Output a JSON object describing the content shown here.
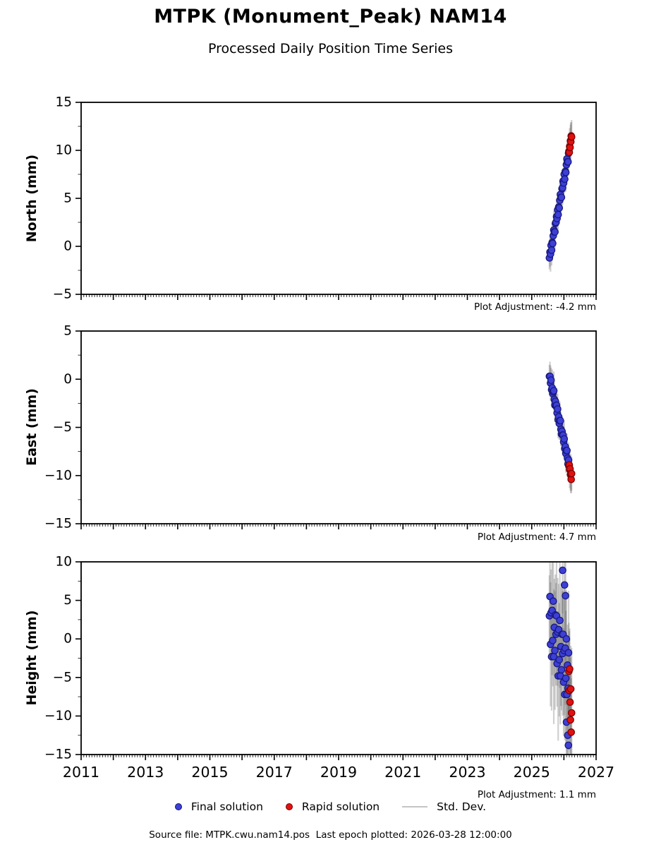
{
  "title": "MTPK (Monument_Peak) NAM14",
  "subtitle": "Processed Daily Position Time Series",
  "footer": "Source file: MTPK.cwu.nam14.pos  Last epoch plotted: 2026-03-28 12:00:00",
  "colors": {
    "final_fill": "#3d40d5",
    "final_edge": "#16167a",
    "rapid_fill": "#e01111",
    "rapid_edge": "#7a0000",
    "std_dev": "#555555",
    "axis": "#000000",
    "legend_line": "#c4c4c4"
  },
  "legend": {
    "final_label": "Final solution",
    "rapid_label": "Rapid solution",
    "std_label": "Std. Dev."
  },
  "xaxis": {
    "lim": [
      2011,
      2027
    ],
    "minor_per_year": 12,
    "ticks": [
      {
        "v": 2011,
        "label": "2011"
      },
      {
        "v": 2013,
        "label": "2013"
      },
      {
        "v": 2015,
        "label": "2015"
      },
      {
        "v": 2017,
        "label": "2017"
      },
      {
        "v": 2019,
        "label": "2019"
      },
      {
        "v": 2021,
        "label": "2021"
      },
      {
        "v": 2023,
        "label": "2023"
      },
      {
        "v": 2025,
        "label": "2025"
      },
      {
        "v": 2027,
        "label": "2027"
      }
    ]
  },
  "chart_data": [
    {
      "type": "scatter",
      "component": "North",
      "ylabel": "North (mm)",
      "ylim": [
        -5,
        15
      ],
      "ytick_values": [
        -5,
        0,
        5,
        10,
        15
      ],
      "ytick_labels": [
        "−5",
        "0",
        "5",
        "10",
        "15"
      ],
      "ytick_minor_step": 2.5,
      "show_xtick_labels": false,
      "plot_adjustment": "Plot Adjustment: -4.2 mm",
      "std_dev_mm": 1.6,
      "series": {
        "final": [
          [
            2025.55,
            -1.2
          ],
          [
            2025.567,
            -0.6
          ],
          [
            2025.584,
            -0.8
          ],
          [
            2025.601,
            0.1
          ],
          [
            2025.618,
            -0.4
          ],
          [
            2025.635,
            0.4
          ],
          [
            2025.652,
            0.3
          ],
          [
            2025.669,
            1.1
          ],
          [
            2025.686,
            1.7
          ],
          [
            2025.703,
            1.5
          ],
          [
            2025.72,
            1.5
          ],
          [
            2025.737,
            2.4
          ],
          [
            2025.754,
            2.5
          ],
          [
            2025.771,
            3.1
          ],
          [
            2025.788,
            2.9
          ],
          [
            2025.805,
            3.8
          ],
          [
            2025.822,
            3.3
          ],
          [
            2025.839,
            4.1
          ],
          [
            2025.856,
            4.0
          ],
          [
            2025.873,
            4.8
          ],
          [
            2025.89,
            5.4
          ],
          [
            2025.907,
            5.1
          ],
          [
            2025.924,
            5.1
          ],
          [
            2025.941,
            6.0
          ],
          [
            2025.958,
            6.1
          ],
          [
            2025.975,
            6.8
          ],
          [
            2025.992,
            6.6
          ],
          [
            2026.009,
            7.5
          ],
          [
            2026.026,
            7.0
          ],
          [
            2026.043,
            7.8
          ],
          [
            2026.06,
            7.7
          ],
          [
            2026.077,
            8.5
          ],
          [
            2026.094,
            9.1
          ],
          [
            2026.111,
            8.8
          ],
          [
            2026.128,
            8.8
          ],
          [
            2026.145,
            9.7
          ]
        ],
        "rapid": [
          [
            2026.155,
            9.9
          ],
          [
            2026.167,
            9.8
          ],
          [
            2026.179,
            10.4
          ],
          [
            2026.191,
            10.3
          ],
          [
            2026.203,
            11.0
          ],
          [
            2026.215,
            10.9
          ],
          [
            2026.227,
            11.5
          ],
          [
            2026.239,
            11.4
          ]
        ]
      }
    },
    {
      "type": "scatter",
      "component": "East",
      "ylabel": "East (mm)",
      "ylim": [
        -15,
        5
      ],
      "ytick_values": [
        -15,
        -10,
        -5,
        0,
        5
      ],
      "ytick_labels": [
        "−15",
        "−10",
        "−5",
        "0",
        "5"
      ],
      "ytick_minor_step": 2.5,
      "show_xtick_labels": false,
      "plot_adjustment": "Plot Adjustment: 4.7 mm",
      "std_dev_mm": 1.6,
      "series": {
        "final": [
          [
            2025.55,
            0.3
          ],
          [
            2025.567,
            0.3
          ],
          [
            2025.584,
            -0.4
          ],
          [
            2025.601,
            -0.1
          ],
          [
            2025.618,
            -1.1
          ],
          [
            2025.635,
            -0.9
          ],
          [
            2025.652,
            -1.5
          ],
          [
            2025.669,
            -1.3
          ],
          [
            2025.686,
            -1.2
          ],
          [
            2025.703,
            -2.1
          ],
          [
            2025.72,
            -2.7
          ],
          [
            2025.737,
            -2.3
          ],
          [
            2025.754,
            -2.8
          ],
          [
            2025.771,
            -2.7
          ],
          [
            2025.788,
            -3.5
          ],
          [
            2025.805,
            -3.1
          ],
          [
            2025.822,
            -4.2
          ],
          [
            2025.839,
            -3.9
          ],
          [
            2025.856,
            -4.6
          ],
          [
            2025.873,
            -4.3
          ],
          [
            2025.89,
            -4.3
          ],
          [
            2025.907,
            -5.2
          ],
          [
            2025.924,
            -5.7
          ],
          [
            2025.941,
            -5.4
          ],
          [
            2025.958,
            -5.8
          ],
          [
            2025.975,
            -5.8
          ],
          [
            2025.992,
            -6.5
          ],
          [
            2026.009,
            -6.2
          ],
          [
            2026.026,
            -7.2
          ],
          [
            2026.043,
            -7.0
          ],
          [
            2026.06,
            -7.7
          ],
          [
            2026.077,
            -7.4
          ],
          [
            2026.094,
            -7.4
          ],
          [
            2026.111,
            -8.2
          ],
          [
            2026.128,
            -8.8
          ],
          [
            2026.145,
            -8.4
          ]
        ],
        "rapid": [
          [
            2026.155,
            -9.0
          ],
          [
            2026.167,
            -8.9
          ],
          [
            2026.179,
            -9.4
          ],
          [
            2026.191,
            -9.3
          ],
          [
            2026.203,
            -9.9
          ],
          [
            2026.215,
            -9.8
          ],
          [
            2026.227,
            -10.4
          ],
          [
            2026.239,
            -9.8
          ]
        ]
      }
    },
    {
      "type": "scatter",
      "component": "Height",
      "ylabel": "Height (mm)",
      "ylim": [
        -15,
        10
      ],
      "ytick_values": [
        -15,
        -10,
        -5,
        0,
        5,
        10
      ],
      "ytick_labels": [
        "−15",
        "−10",
        "−5",
        "0",
        "5",
        "10"
      ],
      "ytick_minor_step": 2.5,
      "show_xtick_labels": true,
      "plot_adjustment": "Plot Adjustment: 1.1 mm",
      "std_dev_mm": 7.0,
      "series": {
        "final": [
          [
            2025.55,
            3.0
          ],
          [
            2025.567,
            5.5
          ],
          [
            2025.584,
            -0.7
          ],
          [
            2025.601,
            3.4
          ],
          [
            2025.618,
            -2.3
          ],
          [
            2025.635,
            3.7
          ],
          [
            2025.652,
            -0.2
          ],
          [
            2025.669,
            4.9
          ],
          [
            2025.686,
            -2.3
          ],
          [
            2025.703,
            1.5
          ],
          [
            2025.72,
            -1.5
          ],
          [
            2025.737,
            3.1
          ],
          [
            2025.754,
            0.6
          ],
          [
            2025.771,
            3.0
          ],
          [
            2025.788,
            -3.2
          ],
          [
            2025.805,
            0.9
          ],
          [
            2025.822,
            -4.8
          ],
          [
            2025.839,
            1.2
          ],
          [
            2025.856,
            -2.7
          ],
          [
            2025.873,
            2.4
          ],
          [
            2025.89,
            -4.8
          ],
          [
            2025.907,
            -1.0
          ],
          [
            2025.924,
            -4.0
          ],
          [
            2025.941,
            0.6
          ],
          [
            2025.958,
            -1.9
          ],
          [
            2025.975,
            0.6
          ],
          [
            2025.992,
            -5.6
          ],
          [
            2026.009,
            -1.5
          ],
          [
            2026.026,
            -7.2
          ],
          [
            2026.043,
            -1.2
          ],
          [
            2026.06,
            -5.1
          ],
          [
            2026.077,
            0.0
          ],
          [
            2026.094,
            -7.2
          ],
          [
            2026.111,
            -3.4
          ],
          [
            2026.128,
            -6.4
          ],
          [
            2026.145,
            -1.8
          ],
          [
            2025.96,
            8.9
          ],
          [
            2026.02,
            7.0
          ],
          [
            2026.05,
            5.6
          ],
          [
            2026.08,
            -10.8
          ],
          [
            2026.12,
            -12.5
          ],
          [
            2026.14,
            -13.8
          ]
        ],
        "rapid": [
          [
            2026.155,
            -4.2
          ],
          [
            2026.167,
            -6.7
          ],
          [
            2026.179,
            -3.9
          ],
          [
            2026.191,
            -8.2
          ],
          [
            2026.203,
            -10.5
          ],
          [
            2026.215,
            -6.5
          ],
          [
            2026.227,
            -12.1
          ],
          [
            2026.239,
            -9.6
          ]
        ]
      }
    }
  ]
}
